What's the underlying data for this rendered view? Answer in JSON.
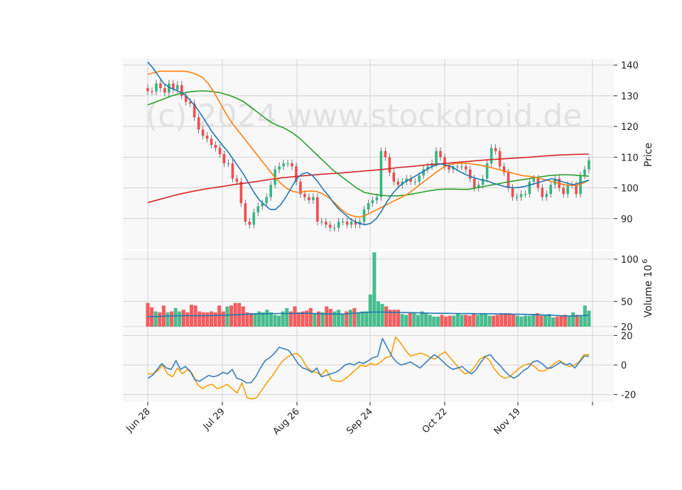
{
  "chart_data": {
    "type": "candlestick",
    "watermark": "(c) 2024 www.stockdroid.de",
    "x_tick_labels": [
      "Jun 28",
      "Jul 29",
      "Aug 26",
      "Sep 24",
      "Oct 22",
      "Nov 19"
    ],
    "panels": {
      "price": {
        "ylabel": "Price",
        "ylim": [
          80,
          142
        ],
        "y_ticks": [
          90,
          100,
          110,
          120,
          130,
          140
        ],
        "close": [
          131.5,
          131.4,
          134.0,
          132.5,
          131.0,
          134.0,
          132.0,
          133.5,
          130.0,
          128.0,
          127.5,
          123.0,
          119.0,
          117.0,
          116.0,
          114.0,
          113.0,
          111.0,
          108.0,
          108.0,
          103.0,
          102.0,
          95.0,
          89.0,
          88.0,
          92.0,
          94.0,
          95.0,
          97.0,
          101.0,
          106.0,
          107.0,
          108.0,
          108.0,
          107.0,
          102.0,
          98.0,
          97.0,
          96.0,
          97.0,
          89.0,
          89.0,
          88.0,
          87.0,
          87.0,
          89.0,
          89.0,
          88.0,
          89.0,
          88.0,
          89.0,
          93.0,
          95.0,
          96.0,
          97.0,
          112.0,
          110.0,
          105.0,
          102.0,
          101.0,
          102.0,
          103.0,
          102.0,
          102.0,
          104.0,
          106.0,
          107.0,
          108.0,
          112.0,
          110.0,
          107.0,
          106.0,
          107.0,
          107.0,
          107.0,
          106.0,
          103.0,
          100.0,
          101.0,
          103.0,
          108.0,
          113.0,
          112.0,
          107.0,
          105.0,
          100.0,
          97.0,
          97.0,
          98.0,
          98.0,
          102.0,
          103.0,
          100.0,
          97.0,
          98.0,
          101.0,
          103.0,
          100.0,
          98.0,
          101.0,
          101.0,
          98.0,
          104.0,
          106.0,
          109.0
        ],
        "ma_blue": [
          141.0,
          139.0,
          136.5,
          134.0,
          132.8,
          132.0,
          131.3,
          130.3,
          128.5,
          126.5,
          124.0,
          121.3,
          118.5,
          116.2,
          114.0,
          112.0,
          109.5,
          107.0,
          104.5,
          101.5,
          98.5,
          96.0,
          94.5,
          93.0,
          92.9,
          94.5,
          97.0,
          100.0,
          103.0,
          104.5,
          105.0,
          104.0,
          102.0,
          99.5,
          97.5,
          95.0,
          93.0,
          91.5,
          90.0,
          89.0,
          88.3,
          88.0,
          88.5,
          90.0,
          92.5,
          95.5,
          98.0,
          100.0,
          101.5,
          102.5,
          103.5,
          104.5,
          105.5,
          106.5,
          107.3,
          107.8,
          107.5,
          107.0,
          106.0,
          105.0,
          104.2,
          103.5,
          103.0,
          102.5,
          102.2,
          101.5,
          101.0,
          100.5,
          100.2,
          100.0,
          100.2,
          100.5,
          101.0,
          101.5,
          102.0,
          102.5,
          103.0,
          102.5,
          102.0,
          101.5,
          101.0,
          101.5,
          102.0,
          102.5
        ],
        "ma_orange": [
          137.0,
          137.5,
          138.0,
          138.0,
          138.0,
          138.0,
          138.0,
          137.7,
          137.0,
          136.0,
          134.0,
          131.0,
          127.5,
          124.0,
          121.0,
          118.5,
          116.0,
          113.5,
          111.0,
          108.5,
          106.0,
          103.5,
          101.5,
          99.8,
          98.8,
          98.5,
          98.8,
          99.0,
          98.8,
          98.0,
          96.8,
          95.0,
          93.0,
          91.5,
          90.8,
          90.5,
          91.0,
          92.0,
          93.0,
          94.0,
          95.0,
          96.0,
          97.0,
          98.0,
          99.5,
          101.0,
          102.5,
          104.0,
          105.5,
          106.8,
          107.6,
          108.0,
          108.0,
          108.0,
          107.7,
          107.4,
          107.0,
          106.5,
          106.0,
          105.5,
          105.0,
          104.5,
          104.0,
          103.8,
          103.5,
          103.0,
          102.5,
          102.0,
          101.5,
          101.0,
          100.8,
          100.9,
          101.5,
          102.5
        ],
        "ma_green": [
          127.0,
          128.0,
          129.0,
          130.0,
          130.7,
          131.2,
          131.5,
          131.6,
          131.4,
          131.0,
          130.3,
          129.3,
          128.0,
          126.0,
          124.0,
          122.0,
          120.5,
          119.5,
          118.0,
          116.0,
          113.5,
          111.0,
          108.5,
          106.0,
          104.0,
          102.0,
          100.0,
          98.5,
          98.0,
          97.6,
          97.4,
          97.4,
          97.6,
          98.0,
          98.5,
          99.0,
          99.4,
          99.6,
          99.6,
          99.5,
          99.5,
          100.0,
          100.5,
          101.0,
          101.5,
          102.0,
          102.4,
          102.8,
          103.2,
          103.6,
          104.0,
          104.2,
          104.3,
          104.2,
          104.0,
          103.8
        ],
        "ma_red": [
          95.2,
          96.5,
          97.8,
          98.8,
          99.7,
          100.4,
          101.2,
          101.8,
          102.5,
          103.2,
          103.7,
          104.1,
          104.5,
          104.8,
          105.2,
          105.6,
          106.0,
          106.6,
          107.0,
          107.5,
          107.9,
          108.3,
          108.7,
          109.1,
          109.4,
          109.7,
          110.0,
          110.4,
          110.7,
          110.9,
          111.0
        ]
      },
      "volume": {
        "ylabel": "Volume  10",
        "ylabel_exponent": "6",
        "ylim": [
          20,
          110
        ],
        "y_ticks": [
          20,
          50,
          100
        ],
        "values": [
          48,
          43,
          38,
          37,
          45,
          37,
          38,
          42,
          38,
          40,
          37,
          46,
          45,
          38,
          37,
          37,
          38,
          37,
          45,
          38,
          44,
          45,
          48,
          48,
          44,
          37,
          36,
          36,
          38,
          37,
          40,
          37,
          34,
          33,
          38,
          42,
          38,
          44,
          37,
          38,
          39,
          42,
          36,
          38,
          37,
          44,
          41,
          38,
          40,
          35,
          38,
          40,
          42,
          37,
          38,
          38,
          58,
          108,
          50,
          47,
          44,
          40,
          40,
          40,
          35,
          34,
          36,
          37,
          34,
          38,
          36,
          34,
          32,
          32,
          34,
          32,
          33,
          33,
          36,
          34,
          34,
          33,
          36,
          34,
          36,
          36,
          33,
          33,
          34,
          36,
          36,
          36,
          34,
          33,
          32,
          33,
          33,
          35,
          36,
          33,
          34,
          35,
          31,
          32,
          33,
          34,
          32,
          37,
          34,
          33,
          45,
          39
        ],
        "ma": [
          32.0,
          32.0,
          32.5,
          32.8,
          33.0,
          33.0,
          33.0,
          33.2,
          33.5,
          34.0,
          34.5,
          35.0,
          35.2,
          35.5,
          35.6,
          35.6,
          35.8,
          35.8,
          35.5,
          35.2,
          35.0,
          35.0,
          36.0,
          37.0,
          37.3,
          37.3,
          37.0,
          36.8,
          36.6,
          36.3,
          36.0,
          35.8,
          35.7,
          35.6,
          35.5,
          35.4,
          35.3,
          35.2,
          35.0,
          34.8,
          34.6,
          34.4,
          34.0,
          33.5,
          33.0,
          32.5,
          33.0,
          33.5
        ]
      },
      "oscillator": {
        "ylim": [
          -25,
          25
        ],
        "y_ticks": [
          -20,
          0,
          20
        ],
        "blue": [
          -9,
          -7,
          -3,
          1,
          -2,
          -3,
          3,
          -3,
          -1,
          -4,
          -10,
          -11,
          -9,
          -7,
          -8,
          -7,
          -5,
          -6,
          -3,
          -9,
          -10,
          -12,
          -12,
          -8,
          -2,
          3,
          5,
          8,
          12,
          11,
          10,
          6,
          1,
          -2,
          -3,
          -5,
          -2,
          -8,
          -7,
          -6,
          -5,
          -3,
          0,
          1,
          0,
          2,
          1,
          3,
          5,
          6,
          18,
          12,
          6,
          2,
          0,
          1,
          2,
          0,
          -2,
          1,
          4,
          7,
          5,
          2,
          -1,
          -3,
          -2,
          -1,
          -4,
          -6,
          -3,
          2,
          6,
          7,
          3,
          0,
          -4,
          -7,
          -9,
          -7,
          -4,
          -2,
          2,
          3,
          1,
          -2,
          -2,
          0,
          2,
          0,
          1,
          -2,
          2,
          6,
          6
        ],
        "orange": [
          -6,
          -6,
          -4,
          0,
          -6,
          -8,
          -2,
          -6,
          -3,
          -6,
          -13,
          -16,
          -14,
          -13,
          -16,
          -15,
          -13,
          -16,
          -19,
          -12,
          -22,
          -23,
          -22,
          -17,
          -12,
          -8,
          -3,
          2,
          5,
          7,
          8,
          5,
          -1,
          -4,
          -5,
          -7,
          -3,
          -10,
          -11,
          -11,
          -9,
          -6,
          -3,
          0,
          -1,
          1,
          0,
          2,
          5,
          6,
          19,
          15,
          10,
          6,
          7,
          8,
          7,
          5,
          4,
          7,
          9,
          5,
          1,
          -3,
          -6,
          -5,
          -1,
          4,
          6,
          3,
          -3,
          -7,
          -9,
          -8,
          -5,
          -2,
          0,
          1,
          -1,
          -4,
          -4,
          -2,
          1,
          3,
          1,
          -1,
          0,
          2,
          7,
          7
        ]
      }
    },
    "legend": "none",
    "grid": true
  }
}
